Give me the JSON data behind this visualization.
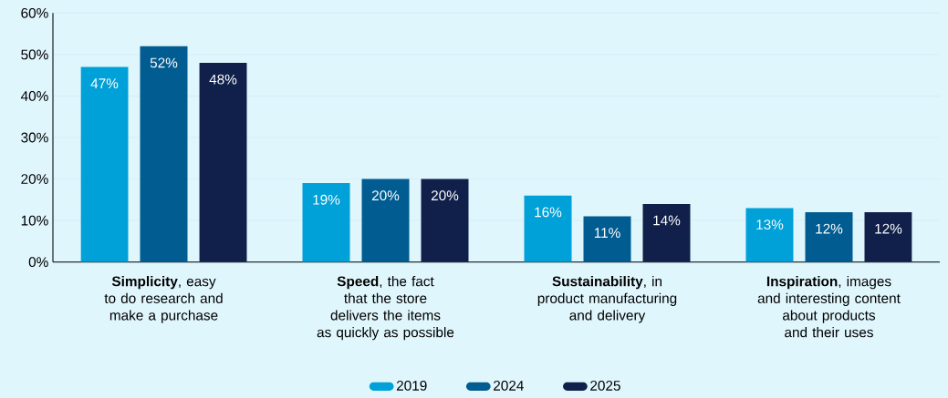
{
  "chart_data": {
    "type": "bar",
    "categories": [
      "**Simplicity**, easy to do research and make a purchase",
      "**Speed**, the fact that the store delivers the items as quickly as possible",
      "**Sustainability**, in product manufacturing and delivery",
      "**Inspiration**, images and interesting content about products and their uses"
    ],
    "series": [
      {
        "name": "2019",
        "color": "#00a0d8",
        "values": [
          47,
          19,
          16,
          13
        ],
        "value_labels": [
          "47%",
          "19%",
          "16%",
          "13%"
        ]
      },
      {
        "name": "2024",
        "color": "#005c91",
        "values": [
          52,
          20,
          11,
          12
        ],
        "value_labels": [
          "52%",
          "20%",
          "11%",
          "12%"
        ]
      },
      {
        "name": "2025",
        "color": "#10204a",
        "values": [
          48,
          20,
          14,
          12
        ],
        "value_labels": [
          "48%",
          "20%",
          "14%",
          "12%"
        ]
      }
    ],
    "ylim": [
      0,
      60
    ],
    "yticks": [
      {
        "value": 0,
        "label": "0%"
      },
      {
        "value": 10,
        "label": "10%"
      },
      {
        "value": 20,
        "label": "20%"
      },
      {
        "value": 30,
        "label": "30%"
      },
      {
        "value": 40,
        "label": "40%"
      },
      {
        "value": 50,
        "label": "50%"
      },
      {
        "value": 60,
        "label": "60%"
      }
    ],
    "grid": "y",
    "legend": "bottom"
  }
}
